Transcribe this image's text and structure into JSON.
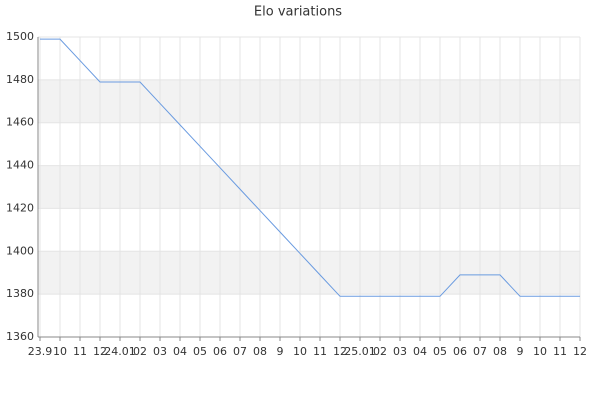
{
  "chart_data": {
    "type": "line",
    "title": "Elo variations",
    "categories": [
      "23.9",
      "10",
      "11",
      "12",
      "24.01",
      "02",
      "03",
      "04",
      "05",
      "06",
      "07",
      "08",
      "9",
      "10",
      "11",
      "12",
      "25.01",
      "02",
      "03",
      "04",
      "05",
      "06",
      "07",
      "08",
      "9",
      "10",
      "11",
      "12"
    ],
    "values": [
      1499,
      1499,
      1489,
      1479,
      1479,
      1479,
      1469,
      1459,
      1449,
      1439,
      1429,
      1419,
      1409,
      1399,
      1389,
      1379,
      1379,
      1379,
      1379,
      1379,
      1379,
      1389,
      1389,
      1389,
      1379,
      1379,
      1379,
      1379
    ],
    "color": "#6a9be0",
    "ylim": [
      1360,
      1500
    ],
    "yticks": [
      1360,
      1380,
      1400,
      1420,
      1440,
      1460,
      1480,
      1500
    ],
    "grid": true
  }
}
